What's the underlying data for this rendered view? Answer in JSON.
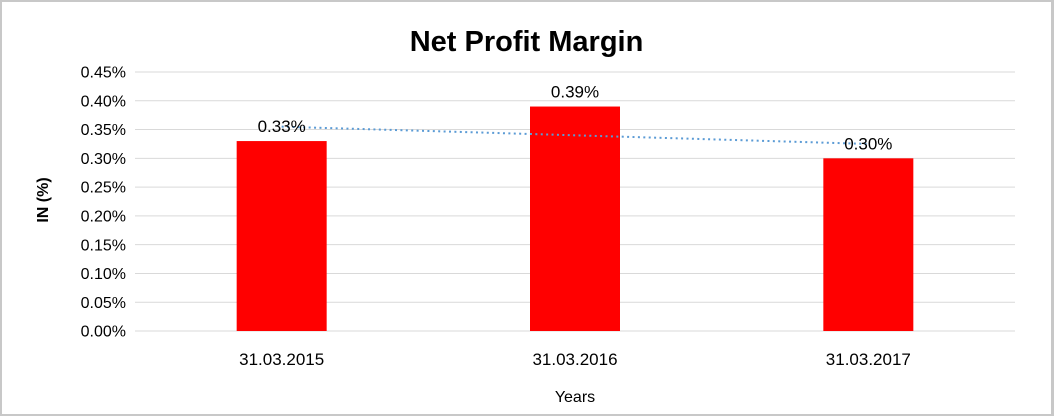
{
  "chart_data": {
    "type": "bar",
    "title": "Net Profit Margin",
    "xlabel": "Years",
    "ylabel": "IN (%)",
    "categories": [
      "31.03.2015",
      "31.03.2016",
      "31.03.2017"
    ],
    "series": [
      {
        "values": [
          0.33,
          0.39,
          0.3
        ],
        "data_labels": [
          "0.33%",
          "0.39%",
          "0.30%"
        ]
      }
    ],
    "trendline": {
      "type": "linear",
      "style": "dotted"
    },
    "ylim": [
      0,
      0.45
    ],
    "ytick_step": 0.05,
    "ytick_suffix": "%",
    "grid": "horizontal",
    "legend": "none",
    "colors": {
      "bar": "#ff0000",
      "trendline": "#5b9bd5",
      "gridline": "#d9d9d9",
      "text": "#000000",
      "frame_border": "#c8c8c8",
      "background": "#ffffff"
    }
  }
}
